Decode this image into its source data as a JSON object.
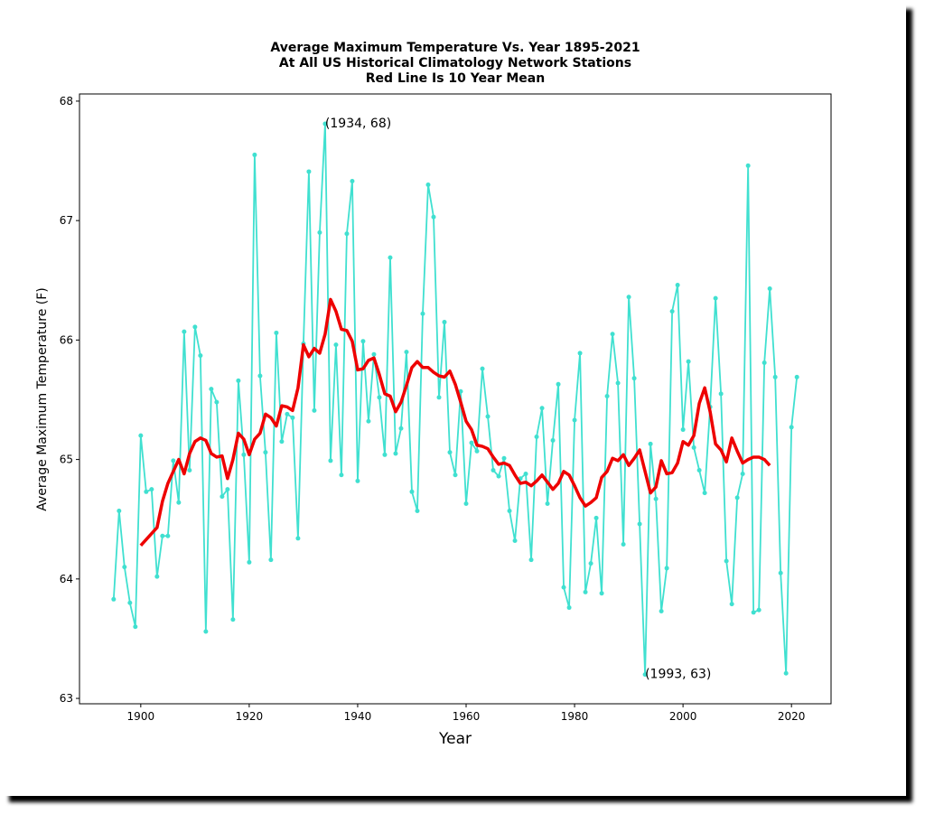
{
  "chart_data": {
    "type": "line",
    "title": [
      "Average Maximum Temperature Vs. Year 1895-2021",
      "At All US Historical Climatology Network Stations",
      "Red Line Is 10 Year Mean"
    ],
    "xlabel": "Year",
    "ylabel": "Average Maximum Temperature (F)",
    "xlim": [
      1888.7,
      2027.3
    ],
    "ylim": [
      62.955,
      68.06
    ],
    "xticks": [
      1900,
      1920,
      1940,
      1960,
      1980,
      2000,
      2020
    ],
    "yticks": [
      63,
      64,
      65,
      66,
      67,
      68
    ],
    "series": [
      {
        "color": "#40e0d0",
        "markers": true,
        "width": 1.8,
        "x": [
          1895,
          1896,
          1897,
          1898,
          1899,
          1900,
          1901,
          1902,
          1903,
          1904,
          1905,
          1906,
          1907,
          1908,
          1909,
          1910,
          1911,
          1912,
          1913,
          1914,
          1915,
          1916,
          1917,
          1918,
          1919,
          1920,
          1921,
          1922,
          1923,
          1924,
          1925,
          1926,
          1927,
          1928,
          1929,
          1930,
          1931,
          1932,
          1933,
          1934,
          1935,
          1936,
          1937,
          1938,
          1939,
          1940,
          1941,
          1942,
          1943,
          1944,
          1945,
          1946,
          1947,
          1948,
          1949,
          1950,
          1951,
          1952,
          1953,
          1954,
          1955,
          1956,
          1957,
          1958,
          1959,
          1960,
          1961,
          1962,
          1963,
          1964,
          1965,
          1966,
          1967,
          1968,
          1969,
          1970,
          1971,
          1972,
          1973,
          1974,
          1975,
          1976,
          1977,
          1978,
          1979,
          1980,
          1981,
          1982,
          1983,
          1984,
          1985,
          1986,
          1987,
          1988,
          1989,
          1990,
          1991,
          1992,
          1993,
          1994,
          1995,
          1996,
          1997,
          1998,
          1999,
          2000,
          2001,
          2002,
          2003,
          2004,
          2005,
          2006,
          2007,
          2008,
          2009,
          2010,
          2011,
          2012,
          2013,
          2014,
          2015,
          2016,
          2017,
          2018,
          2019,
          2020,
          2021
        ],
        "values": [
          63.83,
          64.57,
          64.1,
          63.8,
          63.6,
          65.2,
          64.73,
          64.75,
          64.02,
          64.36,
          64.36,
          64.99,
          64.64,
          66.07,
          64.91,
          66.11,
          65.87,
          63.56,
          65.59,
          65.48,
          64.69,
          64.75,
          63.66,
          65.66,
          65.04,
          64.14,
          67.55,
          65.7,
          65.06,
          64.16,
          66.06,
          65.15,
          65.38,
          65.35,
          64.34,
          65.97,
          67.41,
          65.41,
          66.9,
          67.81,
          64.99,
          65.96,
          64.87,
          66.89,
          67.33,
          64.82,
          65.99,
          65.32,
          65.88,
          65.52,
          65.04,
          66.69,
          65.05,
          65.26,
          65.9,
          64.73,
          64.57,
          66.22,
          67.3,
          67.03,
          65.52,
          66.15,
          65.06,
          64.87,
          65.57,
          64.63,
          65.14,
          65.07,
          65.76,
          65.36,
          64.91,
          64.86,
          65.01,
          64.57,
          64.32,
          64.84,
          64.88,
          64.16,
          65.19,
          65.43,
          64.63,
          65.16,
          65.63,
          63.93,
          63.76,
          65.33,
          65.89,
          63.89,
          64.13,
          64.51,
          63.88,
          65.53,
          66.05,
          65.64,
          64.29,
          66.36,
          65.68,
          64.46,
          63.2,
          65.13,
          64.67,
          63.73,
          64.09,
          66.24,
          66.46,
          65.25,
          65.82,
          65.1,
          64.91,
          64.72,
          65.44,
          66.35,
          65.55,
          64.15,
          63.79,
          64.68,
          64.88,
          67.46,
          63.72,
          63.74,
          65.81,
          66.43,
          65.69,
          64.05,
          63.21,
          65.27,
          65.69
        ]
      },
      {
        "color": "#ee0000",
        "markers": false,
        "width": 3.5,
        "x": [
          1900,
          1901,
          1902,
          1903,
          1904,
          1905,
          1906,
          1907,
          1908,
          1909,
          1910,
          1911,
          1912,
          1913,
          1914,
          1915,
          1916,
          1917,
          1918,
          1919,
          1920,
          1921,
          1922,
          1923,
          1924,
          1925,
          1926,
          1927,
          1928,
          1929,
          1930,
          1931,
          1932,
          1933,
          1934,
          1935,
          1936,
          1937,
          1938,
          1939,
          1940,
          1941,
          1942,
          1943,
          1944,
          1945,
          1946,
          1947,
          1948,
          1949,
          1950,
          1951,
          1952,
          1953,
          1954,
          1955,
          1956,
          1957,
          1958,
          1959,
          1960,
          1961,
          1962,
          1963,
          1964,
          1965,
          1966,
          1967,
          1968,
          1969,
          1970,
          1971,
          1972,
          1973,
          1974,
          1975,
          1976,
          1977,
          1978,
          1979,
          1980,
          1981,
          1982,
          1983,
          1984,
          1985,
          1986,
          1987,
          1988,
          1989,
          1990,
          1991,
          1992,
          1993,
          1994,
          1995,
          1996,
          1997,
          1998,
          1999,
          2000,
          2001,
          2002,
          2003,
          2004,
          2005,
          2006,
          2007,
          2008,
          2009,
          2010,
          2011,
          2012,
          2013,
          2014,
          2015,
          2016
        ],
        "values": [
          64.28,
          64.33,
          64.38,
          64.43,
          64.65,
          64.8,
          64.9,
          65.0,
          64.88,
          65.05,
          65.15,
          65.18,
          65.16,
          65.05,
          65.02,
          65.03,
          64.84,
          65.0,
          65.22,
          65.17,
          65.04,
          65.17,
          65.22,
          65.38,
          65.35,
          65.28,
          65.45,
          65.44,
          65.41,
          65.6,
          65.96,
          65.86,
          65.93,
          65.89,
          66.05,
          66.34,
          66.24,
          66.09,
          66.08,
          65.99,
          65.75,
          65.76,
          65.83,
          65.85,
          65.71,
          65.55,
          65.53,
          65.4,
          65.48,
          65.62,
          65.77,
          65.82,
          65.77,
          65.77,
          65.73,
          65.7,
          65.69,
          65.74,
          65.63,
          65.48,
          65.32,
          65.25,
          65.12,
          65.11,
          65.09,
          65.02,
          64.96,
          64.97,
          64.95,
          64.87,
          64.8,
          64.81,
          64.78,
          64.82,
          64.87,
          64.81,
          64.75,
          64.8,
          64.9,
          64.87,
          64.78,
          64.68,
          64.61,
          64.64,
          64.68,
          64.85,
          64.9,
          65.01,
          64.99,
          65.04,
          64.95,
          65.01,
          65.08,
          64.9,
          64.72,
          64.77,
          64.99,
          64.88,
          64.89,
          64.97,
          65.15,
          65.12,
          65.2,
          65.47,
          65.6,
          65.4,
          65.13,
          65.08,
          64.98,
          65.18,
          65.07,
          64.97,
          65.0,
          65.02,
          65.02,
          65.0,
          64.95
        ]
      }
    ],
    "annotations": [
      {
        "text": "(1934, 68)",
        "x": 1934,
        "y": 67.81
      },
      {
        "text": "(1993, 63)",
        "x": 1993,
        "y": 63.2
      }
    ]
  }
}
